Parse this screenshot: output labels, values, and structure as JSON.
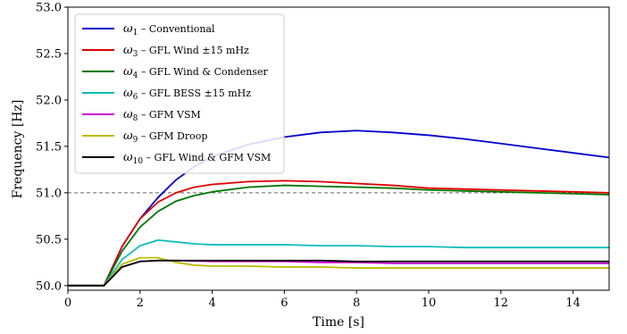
{
  "chart_data": {
    "type": "line",
    "title": "",
    "xlabel": "Time [s]",
    "ylabel": "Frequency   [Hz]",
    "xlim": [
      0,
      15
    ],
    "ylim": [
      49.95,
      53.0
    ],
    "xticks": [
      0,
      2,
      4,
      6,
      8,
      10,
      12,
      14
    ],
    "yticks": [
      50.0,
      50.5,
      51.0,
      51.5,
      52.0,
      52.5,
      53.0
    ],
    "xtick_labels": [
      "0",
      "2",
      "4",
      "6",
      "8",
      "10",
      "12",
      "14"
    ],
    "ytick_labels": [
      "50.0",
      "50.5",
      "51.0",
      "51.5",
      "52.0",
      "52.5",
      "53.0"
    ],
    "grid": false,
    "legend_position": "top-left",
    "reference_line": {
      "y": 51.0,
      "style": "dashed",
      "color": "#666666"
    },
    "series": [
      {
        "name": "ω1 – Conventional",
        "sym": "ω",
        "sub": "1",
        "text": " – Conventional",
        "color": "#0000cc",
        "points": [
          [
            0,
            50.0
          ],
          [
            1,
            50.0
          ],
          [
            1.5,
            50.42
          ],
          [
            2,
            50.72
          ],
          [
            2.5,
            50.95
          ],
          [
            3,
            51.14
          ],
          [
            3.5,
            51.28
          ],
          [
            4,
            51.39
          ],
          [
            5,
            51.52
          ],
          [
            6,
            51.6
          ],
          [
            7,
            51.65
          ],
          [
            8,
            51.67
          ],
          [
            9,
            51.65
          ],
          [
            10,
            51.62
          ],
          [
            11,
            51.58
          ],
          [
            12,
            51.53
          ],
          [
            13,
            51.48
          ],
          [
            14,
            51.43
          ],
          [
            15,
            51.38
          ]
        ]
      },
      {
        "name": "ω3 – GFL Wind ±15 mHz",
        "sym": "ω",
        "sub": "3",
        "text": " – GFL Wind ±15 mHz",
        "color": "#dd0000",
        "points": [
          [
            0,
            50.0
          ],
          [
            1,
            50.0
          ],
          [
            1.5,
            50.42
          ],
          [
            2,
            50.72
          ],
          [
            2.5,
            50.9
          ],
          [
            3,
            51.0
          ],
          [
            3.5,
            51.06
          ],
          [
            4,
            51.09
          ],
          [
            5,
            51.12
          ],
          [
            6,
            51.13
          ],
          [
            7,
            51.12
          ],
          [
            8,
            51.1
          ],
          [
            9,
            51.08
          ],
          [
            10,
            51.05
          ],
          [
            11,
            51.04
          ],
          [
            12,
            51.03
          ],
          [
            13,
            51.02
          ],
          [
            14,
            51.01
          ],
          [
            15,
            51.0
          ]
        ]
      },
      {
        "name": "ω4 – GFL Wind & Condenser",
        "sym": "ω",
        "sub": "4",
        "text": " – GFL Wind & Condenser",
        "color": "#007700",
        "points": [
          [
            0,
            50.0
          ],
          [
            1,
            50.0
          ],
          [
            1.5,
            50.37
          ],
          [
            2,
            50.63
          ],
          [
            2.5,
            50.8
          ],
          [
            3,
            50.91
          ],
          [
            3.5,
            50.97
          ],
          [
            4,
            51.01
          ],
          [
            5,
            51.06
          ],
          [
            6,
            51.08
          ],
          [
            7,
            51.07
          ],
          [
            8,
            51.06
          ],
          [
            9,
            51.05
          ],
          [
            10,
            51.03
          ],
          [
            11,
            51.02
          ],
          [
            12,
            51.01
          ],
          [
            13,
            51.0
          ],
          [
            14,
            50.99
          ],
          [
            15,
            50.98
          ]
        ]
      },
      {
        "name": "ω6 – GFL BESS ±15 mHz",
        "sym": "ω",
        "sub": "6",
        "text": " – GFL BESS ±15 mHz",
        "color": "#11bbbb",
        "points": [
          [
            0,
            50.0
          ],
          [
            1,
            50.0
          ],
          [
            1.5,
            50.28
          ],
          [
            2,
            50.43
          ],
          [
            2.5,
            50.49
          ],
          [
            3,
            50.47
          ],
          [
            3.5,
            50.45
          ],
          [
            4,
            50.44
          ],
          [
            5,
            50.44
          ],
          [
            6,
            50.44
          ],
          [
            7,
            50.43
          ],
          [
            8,
            50.43
          ],
          [
            9,
            50.42
          ],
          [
            10,
            50.42
          ],
          [
            11,
            50.41
          ],
          [
            12,
            50.41
          ],
          [
            13,
            50.41
          ],
          [
            14,
            50.41
          ],
          [
            15,
            50.41
          ]
        ]
      },
      {
        "name": "ω8 – GFM VSM",
        "sym": "ω",
        "sub": "8",
        "text": " – GFM VSM",
        "color": "#cc00cc",
        "points": [
          [
            0,
            50.0
          ],
          [
            1,
            50.0
          ],
          [
            1.5,
            50.2
          ],
          [
            2,
            50.26
          ],
          [
            2.5,
            50.27
          ],
          [
            3,
            50.27
          ],
          [
            4,
            50.26
          ],
          [
            5,
            50.26
          ],
          [
            6,
            50.26
          ],
          [
            7,
            50.25
          ],
          [
            8,
            50.25
          ],
          [
            9,
            50.24
          ],
          [
            10,
            50.24
          ],
          [
            11,
            50.24
          ],
          [
            12,
            50.24
          ],
          [
            13,
            50.24
          ],
          [
            14,
            50.24
          ],
          [
            15,
            50.24
          ]
        ]
      },
      {
        "name": "ω9 – GFM Droop",
        "sym": "ω",
        "sub": "9",
        "text": " – GFM Droop",
        "color": "#bbbb00",
        "points": [
          [
            0,
            50.0
          ],
          [
            1,
            50.0
          ],
          [
            1.5,
            50.23
          ],
          [
            2,
            50.3
          ],
          [
            2.5,
            50.3
          ],
          [
            3,
            50.25
          ],
          [
            3.5,
            50.22
          ],
          [
            4,
            50.21
          ],
          [
            5,
            50.21
          ],
          [
            6,
            50.2
          ],
          [
            7,
            50.2
          ],
          [
            8,
            50.19
          ],
          [
            9,
            50.19
          ],
          [
            10,
            50.19
          ],
          [
            11,
            50.19
          ],
          [
            12,
            50.19
          ],
          [
            13,
            50.19
          ],
          [
            14,
            50.19
          ],
          [
            15,
            50.19
          ]
        ]
      },
      {
        "name": "ω10 – GFL Wind & GFM VSM",
        "sym": "ω",
        "sub": "10",
        "text": " – GFL Wind & GFM VSM",
        "color": "#000000",
        "points": [
          [
            0,
            50.0
          ],
          [
            1,
            50.0
          ],
          [
            1.5,
            50.2
          ],
          [
            2,
            50.26
          ],
          [
            2.5,
            50.27
          ],
          [
            3,
            50.27
          ],
          [
            4,
            50.27
          ],
          [
            5,
            50.27
          ],
          [
            6,
            50.27
          ],
          [
            7,
            50.27
          ],
          [
            8,
            50.26
          ],
          [
            9,
            50.26
          ],
          [
            10,
            50.26
          ],
          [
            11,
            50.26
          ],
          [
            12,
            50.26
          ],
          [
            13,
            50.26
          ],
          [
            14,
            50.26
          ],
          [
            15,
            50.26
          ]
        ]
      }
    ]
  }
}
